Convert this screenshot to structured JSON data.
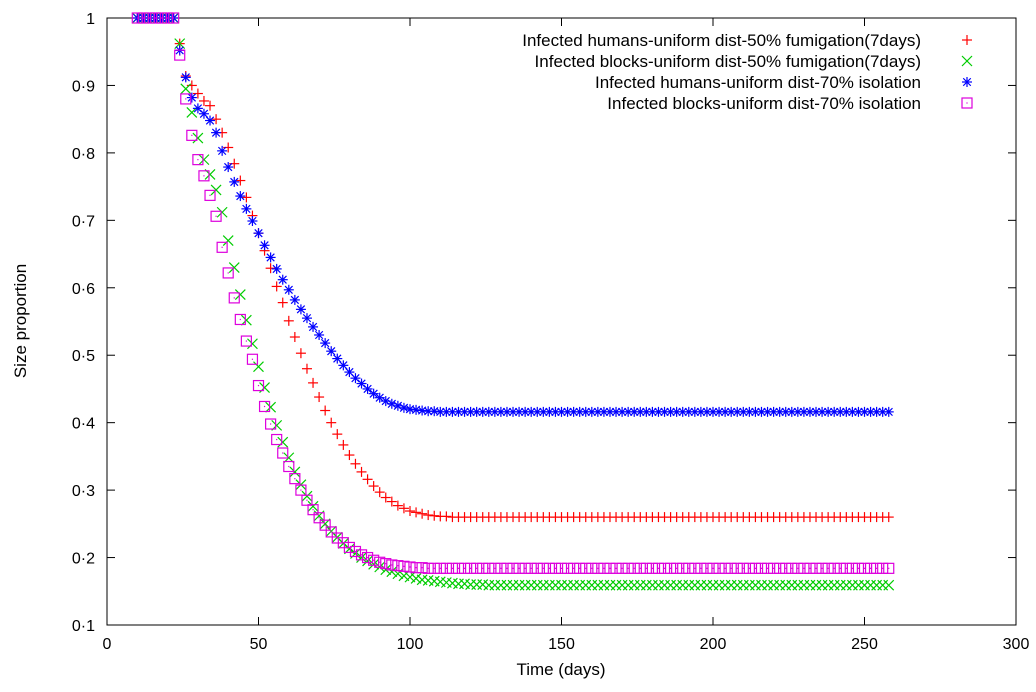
{
  "chart_data": {
    "type": "scatter",
    "xlabel": "Time (days)",
    "ylabel": "Size proportion",
    "xlim": [
      0,
      300
    ],
    "ylim": [
      0.1,
      1
    ],
    "xticks": [
      {
        "value": 0,
        "label": "0"
      },
      {
        "value": 50,
        "label": "50"
      },
      {
        "value": 100,
        "label": "100"
      },
      {
        "value": 150,
        "label": "150"
      },
      {
        "value": 200,
        "label": "200"
      },
      {
        "value": 250,
        "label": "250"
      },
      {
        "value": 300,
        "label": "300"
      }
    ],
    "yticks": [
      {
        "value": 0.1,
        "label": "0·1"
      },
      {
        "value": 0.2,
        "label": "0·2"
      },
      {
        "value": 0.3,
        "label": "0·3"
      },
      {
        "value": 0.4,
        "label": "0·4"
      },
      {
        "value": 0.5,
        "label": "0·5"
      },
      {
        "value": 0.6,
        "label": "0·6"
      },
      {
        "value": 0.7,
        "label": "0·7"
      },
      {
        "value": 0.8,
        "label": "0·8"
      },
      {
        "value": 0.9,
        "label": "0·9"
      },
      {
        "value": 1,
        "label": "1"
      }
    ],
    "grid": false,
    "legend_position": "top-right",
    "x": [
      10,
      12,
      14,
      16,
      18,
      20,
      22,
      24,
      26,
      28,
      30,
      32,
      34,
      36,
      38,
      40,
      42,
      44,
      46,
      48,
      50,
      52,
      54,
      56,
      58,
      60,
      62,
      64,
      66,
      68,
      70,
      72,
      74,
      76,
      78,
      80,
      82,
      84,
      86,
      88,
      90,
      92,
      94,
      96,
      98,
      100,
      102,
      104,
      106,
      108,
      110,
      112,
      114,
      116,
      118,
      120,
      122,
      124,
      126,
      128,
      130,
      132,
      134,
      136,
      138,
      140,
      142,
      144,
      146,
      148,
      150,
      152,
      154,
      156,
      158,
      160,
      162,
      164,
      166,
      168,
      170,
      172,
      174,
      176,
      178,
      180,
      182,
      184,
      186,
      188,
      190,
      192,
      194,
      196,
      198,
      200,
      202,
      204,
      206,
      208,
      210,
      212,
      214,
      216,
      218,
      220,
      222,
      224,
      226,
      228,
      230,
      232,
      234,
      236,
      238,
      240,
      242,
      244,
      246,
      248,
      250,
      252,
      254,
      256,
      258
    ],
    "series": [
      {
        "name": "Infected humans-uniform dist-50% fumigation(7days)",
        "marker": "plus",
        "color": "#ff0000",
        "values": [
          1.0,
          1.0,
          1.0,
          1.0,
          1.0,
          1.0,
          1.0,
          0.962,
          0.914,
          0.9,
          0.888,
          0.877,
          0.87,
          0.85,
          0.83,
          0.808,
          0.784,
          0.759,
          0.734,
          0.707,
          0.681,
          0.655,
          0.629,
          0.602,
          0.578,
          0.551,
          0.527,
          0.503,
          0.48,
          0.459,
          0.438,
          0.418,
          0.4,
          0.383,
          0.367,
          0.352,
          0.339,
          0.327,
          0.316,
          0.306,
          0.297,
          0.289,
          0.283,
          0.277,
          0.273,
          0.269,
          0.267,
          0.265,
          0.263,
          0.262,
          0.261,
          0.261,
          0.26,
          0.26,
          0.26,
          0.26,
          0.26,
          0.26,
          0.26,
          0.26,
          0.26,
          0.26,
          0.26,
          0.26,
          0.26,
          0.26,
          0.26,
          0.26,
          0.26,
          0.26,
          0.26,
          0.26,
          0.26,
          0.26,
          0.26,
          0.26,
          0.26,
          0.26,
          0.26,
          0.26,
          0.26,
          0.26,
          0.26,
          0.26,
          0.26,
          0.26,
          0.26,
          0.26,
          0.26,
          0.26,
          0.26,
          0.26,
          0.26,
          0.26,
          0.26,
          0.26,
          0.26,
          0.26,
          0.26,
          0.26,
          0.26,
          0.26,
          0.26,
          0.26,
          0.26,
          0.26,
          0.26,
          0.26,
          0.26,
          0.26,
          0.26,
          0.26,
          0.26,
          0.26,
          0.26,
          0.26,
          0.26,
          0.26,
          0.26,
          0.26,
          0.26,
          0.26,
          0.26,
          0.26,
          0.26
        ]
      },
      {
        "name": "Infected blocks-uniform dist-50% fumigation(7days)",
        "marker": "x",
        "color": "#00cc00",
        "values": [
          1.0,
          1.0,
          1.0,
          1.0,
          1.0,
          1.0,
          1.0,
          0.962,
          0.895,
          0.86,
          0.822,
          0.79,
          0.768,
          0.745,
          0.712,
          0.67,
          0.63,
          0.59,
          0.552,
          0.517,
          0.483,
          0.452,
          0.423,
          0.396,
          0.371,
          0.348,
          0.327,
          0.308,
          0.291,
          0.276,
          0.262,
          0.25,
          0.239,
          0.23,
          0.221,
          0.213,
          0.206,
          0.2,
          0.195,
          0.19,
          0.186,
          0.182,
          0.179,
          0.176,
          0.173,
          0.171,
          0.169,
          0.167,
          0.166,
          0.165,
          0.164,
          0.163,
          0.162,
          0.161,
          0.161,
          0.16,
          0.16,
          0.16,
          0.159,
          0.159,
          0.159,
          0.159,
          0.159,
          0.159,
          0.159,
          0.159,
          0.159,
          0.159,
          0.159,
          0.159,
          0.159,
          0.159,
          0.159,
          0.159,
          0.159,
          0.159,
          0.159,
          0.159,
          0.159,
          0.159,
          0.159,
          0.159,
          0.159,
          0.159,
          0.159,
          0.159,
          0.159,
          0.159,
          0.159,
          0.159,
          0.159,
          0.159,
          0.159,
          0.159,
          0.159,
          0.159,
          0.159,
          0.159,
          0.159,
          0.159,
          0.159,
          0.159,
          0.159,
          0.159,
          0.159,
          0.159,
          0.159,
          0.159,
          0.159,
          0.159,
          0.159,
          0.159,
          0.159,
          0.159,
          0.159,
          0.159,
          0.159,
          0.159,
          0.159,
          0.159,
          0.159,
          0.159,
          0.159,
          0.159,
          0.159
        ]
      },
      {
        "name": "Infected humans-uniform dist-70% isolation",
        "marker": "asterisk",
        "color": "#0000ff",
        "values": [
          1.0,
          1.0,
          1.0,
          1.0,
          1.0,
          1.0,
          1.0,
          0.952,
          0.912,
          0.882,
          0.866,
          0.858,
          0.848,
          0.83,
          0.803,
          0.779,
          0.757,
          0.736,
          0.717,
          0.699,
          0.681,
          0.663,
          0.645,
          0.628,
          0.612,
          0.597,
          0.582,
          0.568,
          0.555,
          0.542,
          0.53,
          0.518,
          0.506,
          0.495,
          0.485,
          0.475,
          0.466,
          0.458,
          0.45,
          0.443,
          0.437,
          0.432,
          0.428,
          0.425,
          0.422,
          0.42,
          0.419,
          0.418,
          0.417,
          0.417,
          0.416,
          0.416,
          0.416,
          0.416,
          0.416,
          0.416,
          0.416,
          0.416,
          0.416,
          0.416,
          0.416,
          0.416,
          0.416,
          0.416,
          0.416,
          0.416,
          0.416,
          0.416,
          0.416,
          0.416,
          0.416,
          0.416,
          0.416,
          0.416,
          0.416,
          0.416,
          0.416,
          0.416,
          0.416,
          0.416,
          0.416,
          0.416,
          0.416,
          0.416,
          0.416,
          0.416,
          0.416,
          0.416,
          0.416,
          0.416,
          0.416,
          0.416,
          0.416,
          0.416,
          0.416,
          0.416,
          0.416,
          0.416,
          0.416,
          0.416,
          0.416,
          0.416,
          0.416,
          0.416,
          0.416,
          0.416,
          0.416,
          0.416,
          0.416,
          0.416,
          0.416,
          0.416,
          0.416,
          0.416,
          0.416,
          0.416,
          0.416,
          0.416,
          0.416,
          0.416,
          0.416,
          0.416,
          0.416,
          0.416,
          0.416
        ]
      },
      {
        "name": "Infected blocks-uniform dist-70% isolation",
        "marker": "square",
        "color": "#dd00dd",
        "values": [
          1.0,
          1.0,
          1.0,
          1.0,
          1.0,
          1.0,
          1.0,
          0.945,
          0.88,
          0.826,
          0.79,
          0.766,
          0.737,
          0.706,
          0.66,
          0.622,
          0.585,
          0.553,
          0.521,
          0.494,
          0.455,
          0.424,
          0.398,
          0.375,
          0.355,
          0.335,
          0.317,
          0.3,
          0.285,
          0.271,
          0.259,
          0.248,
          0.238,
          0.229,
          0.222,
          0.215,
          0.209,
          0.204,
          0.2,
          0.196,
          0.193,
          0.191,
          0.189,
          0.188,
          0.187,
          0.186,
          0.185,
          0.185,
          0.184,
          0.184,
          0.184,
          0.184,
          0.184,
          0.184,
          0.184,
          0.184,
          0.184,
          0.184,
          0.184,
          0.184,
          0.184,
          0.184,
          0.184,
          0.184,
          0.184,
          0.184,
          0.184,
          0.184,
          0.184,
          0.184,
          0.184,
          0.184,
          0.184,
          0.184,
          0.184,
          0.184,
          0.184,
          0.184,
          0.184,
          0.184,
          0.184,
          0.184,
          0.184,
          0.184,
          0.184,
          0.184,
          0.184,
          0.184,
          0.184,
          0.184,
          0.184,
          0.184,
          0.184,
          0.184,
          0.184,
          0.184,
          0.184,
          0.184,
          0.184,
          0.184,
          0.184,
          0.184,
          0.184,
          0.184,
          0.184,
          0.184,
          0.184,
          0.184,
          0.184,
          0.184,
          0.184,
          0.184,
          0.184,
          0.184,
          0.184,
          0.184,
          0.184,
          0.184,
          0.184,
          0.184,
          0.184,
          0.184,
          0.184,
          0.184,
          0.184
        ]
      }
    ]
  }
}
